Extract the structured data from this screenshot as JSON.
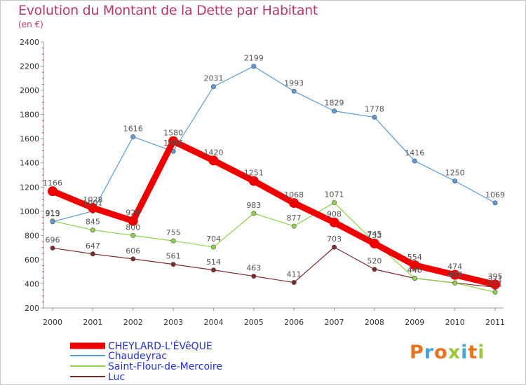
{
  "title": "Evolution du Montant de la Dette par Habitant",
  "subtitle": "(en €)",
  "logo": {
    "text": "Proxiti",
    "colors": [
      "#e8731e",
      "#3fa7dc",
      "#e8731e",
      "#9bc83c",
      "#3fa7dc",
      "#e8731e",
      "#9bc83c"
    ]
  },
  "chart_data": {
    "type": "line",
    "x": [
      "2000",
      "2001",
      "2002",
      "2003",
      "2004",
      "2005",
      "2006",
      "2007",
      "2008",
      "2009",
      "2010",
      "2011"
    ],
    "ylim": [
      200,
      2400
    ],
    "yticks": [
      200,
      400,
      600,
      800,
      1000,
      1200,
      1400,
      1600,
      1800,
      2000,
      2200,
      2400
    ],
    "grid": false,
    "legend_position": "bottom-left",
    "series": [
      {
        "name": "CHEYLARD-L'ÉVêQUE",
        "color": "#ee0000",
        "values": [
          1166,
          1028,
          920,
          1580,
          1420,
          1251,
          1068,
          908,
          733,
          554,
          474,
          395
        ],
        "labels": [
          "1166",
          "1028",
          "920",
          "1580",
          "1420",
          "1251",
          "1068",
          "908",
          "733",
          "554",
          "474",
          "395"
        ]
      },
      {
        "name": "Chaudeyrac",
        "color": "#5b9bd5",
        "values": [
          913,
          1001,
          1616,
          1496,
          2031,
          2199,
          1993,
          1829,
          1778,
          1416,
          1250,
          1069
        ],
        "labels": [
          "913",
          "1001",
          "1616",
          "1496",
          "2031",
          "2199",
          "1993",
          "1829",
          "1778",
          "1416",
          "1250",
          "1069"
        ]
      },
      {
        "name": "Saint-Flour-de-Mercoire",
        "color": "#8fd14f",
        "values": [
          919,
          845,
          800,
          755,
          704,
          983,
          877,
          1071,
          745,
          446,
          407,
          331
        ],
        "labels": [
          "919",
          "845",
          "800",
          "755",
          "704",
          "983",
          "877",
          "1071",
          "745",
          "446",
          "407",
          "331"
        ]
      },
      {
        "name": "Luc",
        "color": "#7b2a2a",
        "values": [
          696,
          647,
          606,
          561,
          514,
          463,
          411,
          703,
          520,
          446,
          408,
          371
        ],
        "labels": [
          "696",
          "647",
          "606",
          "561",
          "514",
          "463",
          "411",
          "703",
          "520",
          "446",
          "408",
          "371"
        ]
      }
    ]
  }
}
